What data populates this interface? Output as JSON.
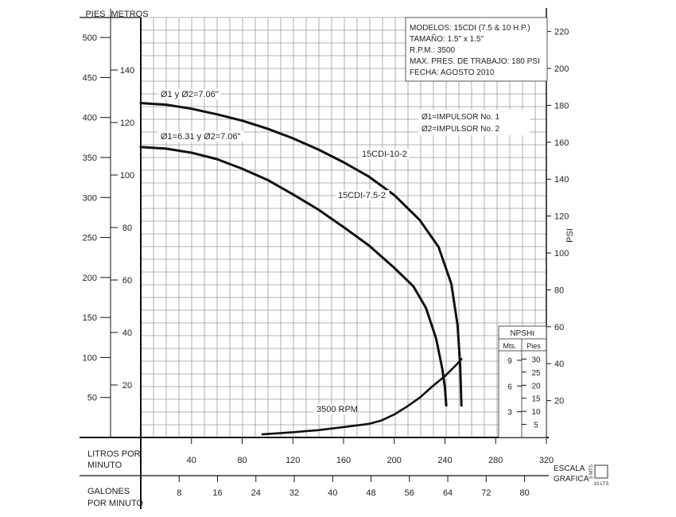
{
  "chart_data": {
    "type": "line",
    "x_unit_primary": "LITROS POR MINUTO",
    "x_unit_secondary": "GALONES POR MINUTO",
    "x_ticks_lpm": [
      40,
      80,
      120,
      160,
      200,
      240,
      280,
      320
    ],
    "x_ticks_gpm": [
      8,
      16,
      24,
      32,
      40,
      48,
      56,
      64,
      72,
      80
    ],
    "xlim_lpm": [
      0,
      320
    ],
    "xlim_gpm": [
      0,
      84.6
    ],
    "y_unit_pies": "PIES",
    "y_unit_metros": "METROS",
    "y_ticks_pies": [
      50,
      100,
      150,
      200,
      250,
      300,
      350,
      400,
      450,
      500
    ],
    "y_ticks_metros": [
      20,
      40,
      60,
      80,
      100,
      120,
      140
    ],
    "ylim_pies": [
      0,
      525
    ],
    "y_unit_psi": "PSI",
    "y_ticks_psi": [
      20,
      40,
      60,
      80,
      100,
      120,
      140,
      160,
      180,
      200,
      220
    ],
    "grid": true,
    "info_box": {
      "lines": [
        "MODELOS: 15CDI (7.5 & 10 H.P.)",
        "TAMAÑO: 1.5\" x 1.5\"",
        "R.P.M.: 3500",
        "MAX. PRES. DE TRABAJO: 180 PSI",
        "FECHA: AGOSTO 2010"
      ]
    },
    "legend_notes": [
      "Ø1=IMPULSOR No. 1",
      "Ø2=IMPULSOR No. 2"
    ],
    "series": [
      {
        "name": "15CDI-10-2",
        "impeller_label": "Ø1 y Ø2=7.06\"",
        "x_lpm": [
          0,
          20,
          40,
          60,
          80,
          100,
          120,
          140,
          160,
          180,
          200,
          220,
          235,
          245,
          250,
          252,
          253
        ],
        "y_pies": [
          418,
          416,
          411,
          404,
          396,
          386,
          374,
          360,
          344,
          326,
          303,
          272,
          238,
          192,
          140,
          90,
          40
        ]
      },
      {
        "name": "15CDI-7.5-2",
        "impeller_label": "Ø1=6.31 y Ø2=7.06\"",
        "x_lpm": [
          0,
          20,
          40,
          60,
          80,
          100,
          120,
          140,
          160,
          180,
          200,
          215,
          225,
          233,
          238,
          240,
          241
        ],
        "y_pies": [
          363,
          361,
          356,
          348,
          336,
          322,
          304,
          285,
          263,
          240,
          212,
          189,
          162,
          124,
          85,
          62,
          40
        ]
      },
      {
        "name": "3500 RPM",
        "axis": "NPSHr",
        "x_lpm": [
          96,
          120,
          140,
          160,
          180,
          190,
          200,
          210,
          220,
          230,
          240,
          250,
          253
        ],
        "npsh_pies": [
          1.2,
          2,
          2.8,
          4,
          5.2,
          6.5,
          8.8,
          11.8,
          15.2,
          19.5,
          23.5,
          28.3,
          30
        ]
      }
    ],
    "npsh_axis": {
      "title": "NPSHr",
      "col_mts": "Mts.",
      "col_pies": "Pies",
      "ticks_mts": [
        3,
        6,
        9
      ],
      "ticks_pies": [
        5,
        10,
        15,
        20,
        25,
        30
      ],
      "range_pies": [
        0,
        35
      ]
    },
    "scale_legend": {
      "title_line1": "ESCALA",
      "title_line2": "GRAFICA",
      "v_label": "5 MTS",
      "h_label": "10 LTS"
    },
    "x_label_lines": {
      "lpm_1": "LITROS POR",
      "lpm_2": "MINUTO",
      "gpm_1": "GALONES",
      "gpm_2": "POR MINUTO"
    }
  }
}
